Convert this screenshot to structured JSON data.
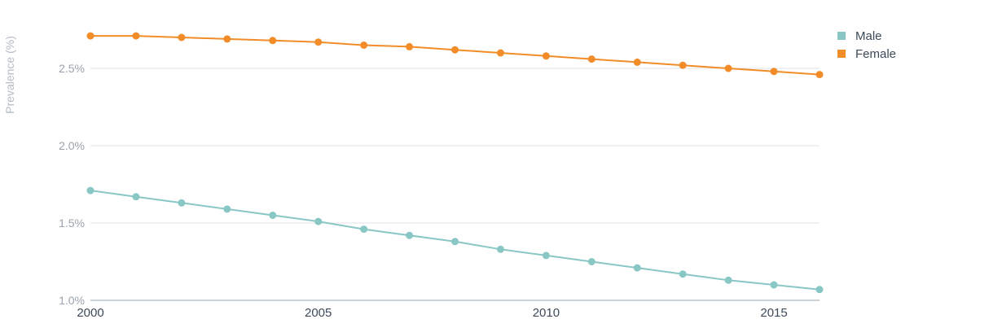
{
  "chart_data": {
    "type": "line",
    "title": "",
    "xlabel": "",
    "ylabel": "Prevalence (%)",
    "x": [
      2000,
      2001,
      2002,
      2003,
      2004,
      2005,
      2006,
      2007,
      2008,
      2009,
      2010,
      2011,
      2012,
      2013,
      2014,
      2015,
      2016
    ],
    "x_ticks": [
      2000,
      2005,
      2010,
      2015
    ],
    "x_tick_labels": [
      "2000",
      "2005",
      "2010",
      "2015"
    ],
    "xlim": [
      2000,
      2016
    ],
    "ylim": [
      1.0,
      2.8
    ],
    "y_ticks": [
      1.0,
      1.5,
      2.0,
      2.5
    ],
    "y_tick_labels": [
      "1.0%",
      "1.5%",
      "2.0%",
      "2.5%"
    ],
    "grid": "horizontal",
    "legend_position": "top-right",
    "series": [
      {
        "name": "Male",
        "color": "#89c7c5",
        "values": [
          1.71,
          1.67,
          1.63,
          1.59,
          1.55,
          1.51,
          1.46,
          1.42,
          1.38,
          1.33,
          1.29,
          1.25,
          1.21,
          1.17,
          1.13,
          1.1,
          1.07
        ]
      },
      {
        "name": "Female",
        "color": "#f28c28",
        "values": [
          2.71,
          2.71,
          2.7,
          2.69,
          2.68,
          2.67,
          2.65,
          2.64,
          2.62,
          2.6,
          2.58,
          2.56,
          2.54,
          2.52,
          2.5,
          2.48,
          2.46
        ]
      }
    ]
  }
}
